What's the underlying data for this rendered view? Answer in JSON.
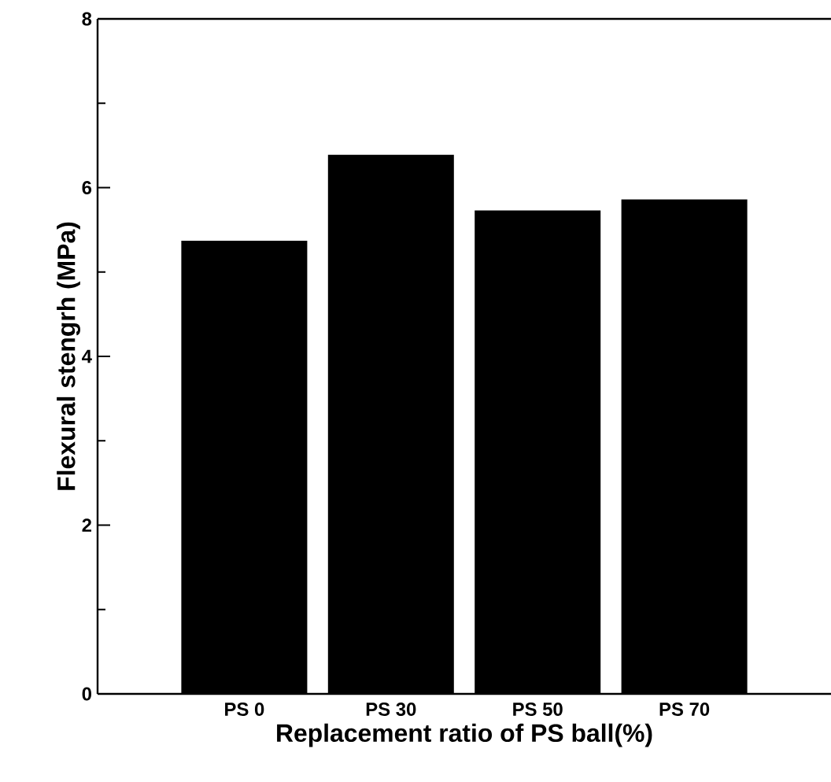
{
  "chart_data": {
    "type": "bar",
    "xlabel": "Replacement ratio of PS ball(%)",
    "ylabel": "Flexural stengrh (MPa)",
    "categories": [
      "PS 0",
      "PS 30",
      "PS 50",
      "PS 70"
    ],
    "values": [
      5.37,
      6.39,
      5.73,
      5.86
    ],
    "color": "#000000",
    "ylim": [
      0,
      8
    ],
    "yticks": [
      0,
      2,
      4,
      6,
      8
    ]
  }
}
